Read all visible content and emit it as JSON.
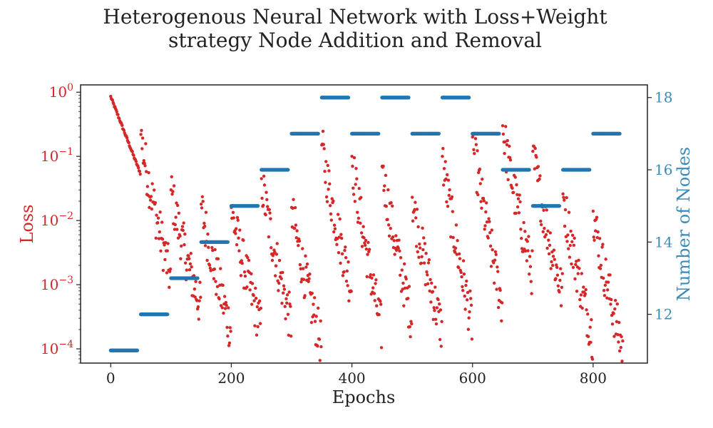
{
  "colors": {
    "loss": "#d62728",
    "nodes": "#1f77b4",
    "nodes_axis": "#3b8bba",
    "axis": "#222222"
  },
  "chart_data": {
    "type": "scatter",
    "title_lines": [
      "Heterogenous Neural Network with Loss+Weight",
      "strategy Node Addition and Removal"
    ],
    "xlabel": "Epochs",
    "ylabel_left": "Loss",
    "ylabel_right": "Number of Nodes",
    "xlim": [
      -50,
      890
    ],
    "x_ticks": [
      0,
      200,
      400,
      600,
      800
    ],
    "x_tick_labels": [
      "0",
      "200",
      "400",
      "600",
      "800"
    ],
    "left_axis": {
      "scale": "log",
      "ylim": [
        6e-05,
        1.3
      ],
      "ticks": [
        1,
        0.1,
        0.01,
        0.001,
        0.0001
      ],
      "tick_bases": [
        "10",
        "10",
        "10",
        "10",
        "10"
      ],
      "tick_exponents": [
        "0",
        "−1",
        "−2",
        "−3",
        "−4"
      ]
    },
    "right_axis": {
      "scale": "linear",
      "ylim": [
        10.65,
        18.35
      ],
      "ticks": [
        12,
        14,
        16,
        18
      ],
      "tick_labels": [
        "12",
        "14",
        "16",
        "18"
      ]
    },
    "nodes_series": {
      "name": "Number of Nodes",
      "segments": [
        {
          "x_start": 0,
          "x_end": 50,
          "nodes": 11
        },
        {
          "x_start": 50,
          "x_end": 100,
          "nodes": 12
        },
        {
          "x_start": 100,
          "x_end": 150,
          "nodes": 13
        },
        {
          "x_start": 150,
          "x_end": 200,
          "nodes": 14
        },
        {
          "x_start": 200,
          "x_end": 250,
          "nodes": 15
        },
        {
          "x_start": 250,
          "x_end": 300,
          "nodes": 16
        },
        {
          "x_start": 300,
          "x_end": 350,
          "nodes": 17
        },
        {
          "x_start": 350,
          "x_end": 400,
          "nodes": 18
        },
        {
          "x_start": 400,
          "x_end": 450,
          "nodes": 17
        },
        {
          "x_start": 450,
          "x_end": 500,
          "nodes": 18
        },
        {
          "x_start": 500,
          "x_end": 550,
          "nodes": 17
        },
        {
          "x_start": 550,
          "x_end": 600,
          "nodes": 18
        },
        {
          "x_start": 600,
          "x_end": 650,
          "nodes": 17
        },
        {
          "x_start": 650,
          "x_end": 700,
          "nodes": 16
        },
        {
          "x_start": 700,
          "x_end": 750,
          "nodes": 15
        },
        {
          "x_start": 750,
          "x_end": 800,
          "nodes": 16
        },
        {
          "x_start": 800,
          "x_end": 850,
          "nodes": 17
        }
      ]
    },
    "loss_series": {
      "name": "Loss",
      "segments": [
        {
          "x_start": 0,
          "x_end": 50,
          "loss_start": 0.85,
          "loss_end": 0.055
        },
        {
          "x_start": 50,
          "x_end": 100,
          "loss_start": 0.22,
          "loss_end": 0.0013
        },
        {
          "x_start": 100,
          "x_end": 150,
          "loss_start": 0.03,
          "loss_end": 0.00045
        },
        {
          "x_start": 150,
          "x_end": 200,
          "loss_start": 0.018,
          "loss_end": 0.0002
        },
        {
          "x_start": 200,
          "x_end": 250,
          "loss_start": 0.016,
          "loss_end": 0.00022
        },
        {
          "x_start": 250,
          "x_end": 300,
          "loss_start": 0.045,
          "loss_end": 0.00025
        },
        {
          "x_start": 300,
          "x_end": 350,
          "loss_start": 0.016,
          "loss_end": 0.00012
        },
        {
          "x_start": 350,
          "x_end": 400,
          "loss_start": 0.15,
          "loss_end": 0.0009
        },
        {
          "x_start": 400,
          "x_end": 450,
          "loss_start": 0.1,
          "loss_end": 0.0002
        },
        {
          "x_start": 450,
          "x_end": 500,
          "loss_start": 0.07,
          "loss_end": 0.0003
        },
        {
          "x_start": 500,
          "x_end": 550,
          "loss_start": 0.023,
          "loss_end": 0.0002
        },
        {
          "x_start": 550,
          "x_end": 600,
          "loss_start": 0.1,
          "loss_end": 0.00025
        },
        {
          "x_start": 600,
          "x_end": 650,
          "loss_start": 0.2,
          "loss_end": 0.0005
        },
        {
          "x_start": 650,
          "x_end": 700,
          "loss_start": 0.3,
          "loss_end": 0.0015
        },
        {
          "x_start": 700,
          "x_end": 750,
          "loss_start": 0.12,
          "loss_end": 0.0007
        },
        {
          "x_start": 750,
          "x_end": 800,
          "loss_start": 0.026,
          "loss_end": 0.00016
        },
        {
          "x_start": 800,
          "x_end": 850,
          "loss_start": 0.014,
          "loss_end": 0.0001
        }
      ]
    }
  }
}
